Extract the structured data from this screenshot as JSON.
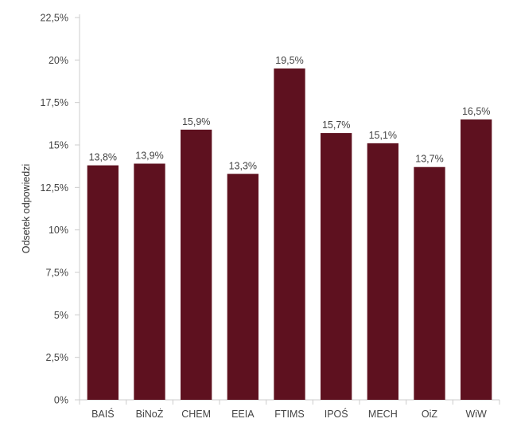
{
  "chart_data": {
    "type": "bar",
    "title": "",
    "xlabel": "",
    "ylabel": "Odsetek odpowiedzi",
    "categories": [
      "BAIŚ",
      "BiNoŻ",
      "CHEM",
      "EEIA",
      "FTIMS",
      "IPOŚ",
      "MECH",
      "OiZ",
      "WiW"
    ],
    "values": [
      13.8,
      13.9,
      15.9,
      13.3,
      19.5,
      15.7,
      15.1,
      13.7,
      16.5
    ],
    "value_labels": [
      "13,8%",
      "13,9%",
      "15,9%",
      "13,3%",
      "19,5%",
      "15,7%",
      "15,1%",
      "13,7%",
      "16,5%"
    ],
    "ylim": [
      0,
      22.5
    ],
    "y_ticks": [
      0,
      2.5,
      5,
      7.5,
      10,
      12.5,
      15,
      17.5,
      20,
      22.5
    ],
    "y_tick_labels": [
      "0%",
      "2,5%",
      "5%",
      "7,5%",
      "10%",
      "12,5%",
      "15%",
      "17,5%",
      "20%",
      "22,5%"
    ],
    "grid": false,
    "legend": "none",
    "bar_color": "#5e111f"
  }
}
